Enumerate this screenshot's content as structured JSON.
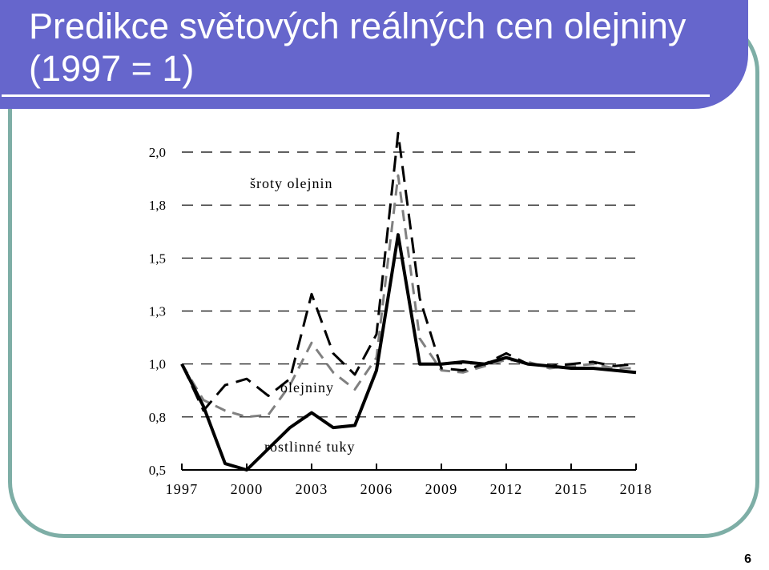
{
  "slide": {
    "title": "Predikce světových reálných cen olejniny (1997 = 1)",
    "page_number": "6"
  },
  "colors": {
    "title_bar": "#6666cc",
    "frame": "#7eaea6",
    "gridline": "#000000"
  },
  "chart_data": {
    "type": "line",
    "title": "",
    "xlabel": "",
    "ylabel": "",
    "x": [
      1997,
      1998,
      1999,
      2000,
      2001,
      2002,
      2003,
      2004,
      2005,
      2006,
      2007,
      2008,
      2009,
      2010,
      2011,
      2012,
      2013,
      2014,
      2015,
      2016,
      2017,
      2018
    ],
    "xticks": [
      "1997",
      "2000",
      "2003",
      "2006",
      "2009",
      "2012",
      "2015",
      "2018"
    ],
    "yticks": [
      "2,0",
      "1,8",
      "1,5",
      "1,3",
      "1,0",
      "0,8",
      "0,5"
    ],
    "ylim": [
      0.5,
      2.0
    ],
    "grid": "horizontal dashed",
    "series": [
      {
        "name": "olejniny",
        "style": "solid",
        "color": "#000000",
        "values": [
          1.0,
          0.8,
          0.53,
          0.5,
          0.6,
          0.7,
          0.77,
          0.7,
          0.71,
          0.97,
          1.61,
          1.0,
          1.0,
          1.01,
          1.0,
          1.03,
          1.0,
          0.99,
          0.98,
          0.98,
          0.97,
          0.96
        ]
      },
      {
        "name": "šroty olejnin",
        "style": "long-dash",
        "color": "#000000",
        "values": [
          1.0,
          0.78,
          0.9,
          0.93,
          0.85,
          0.93,
          1.33,
          1.05,
          0.95,
          1.14,
          2.09,
          1.31,
          0.98,
          0.97,
          1.0,
          1.05,
          1.0,
          0.99,
          1.0,
          1.01,
          0.99,
          1.0
        ]
      },
      {
        "name": "rostlinné tuky",
        "style": "dash",
        "color": "#808080",
        "values": [
          1.0,
          0.83,
          0.78,
          0.75,
          0.76,
          0.9,
          1.1,
          0.96,
          0.88,
          1.03,
          1.89,
          1.12,
          0.97,
          0.96,
          0.99,
          1.02,
          1.01,
          0.98,
          0.99,
          1.0,
          0.98,
          0.98
        ]
      }
    ]
  }
}
